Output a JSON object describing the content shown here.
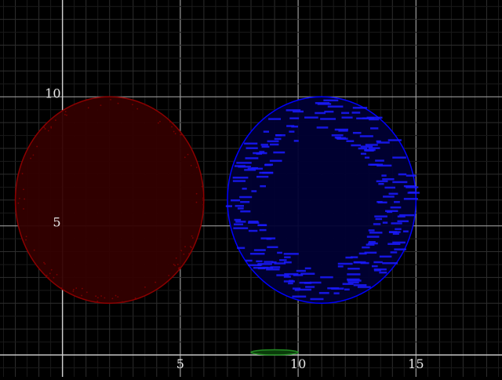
{
  "chart_data": {
    "type": "scatter",
    "title": "",
    "xlabel": "",
    "ylabel": "",
    "xlim": [
      -2.65,
      18.65
    ],
    "ylim": [
      -0.85,
      13.75
    ],
    "grid": true,
    "x_ticks": [
      5,
      10,
      15
    ],
    "y_ticks": [
      5,
      10
    ],
    "x_tick_labels": [
      "5",
      "10",
      "15"
    ],
    "y_tick_labels": [
      "5",
      "10"
    ],
    "shapes": [
      {
        "kind": "circle",
        "cx": 2.0,
        "cy": 6.0,
        "r": 4.0,
        "color": "#8b0000",
        "fill": "#330000"
      },
      {
        "kind": "circle",
        "cx": 11.0,
        "cy": 6.0,
        "r": 4.0,
        "color": "#0000ff",
        "fill": "#000033"
      },
      {
        "kind": "ellipse",
        "cx": 9.0,
        "cy": 0.1,
        "rx": 1.0,
        "ry": 0.1,
        "color": "#228b22",
        "fill": "#0a3a0a"
      }
    ]
  }
}
